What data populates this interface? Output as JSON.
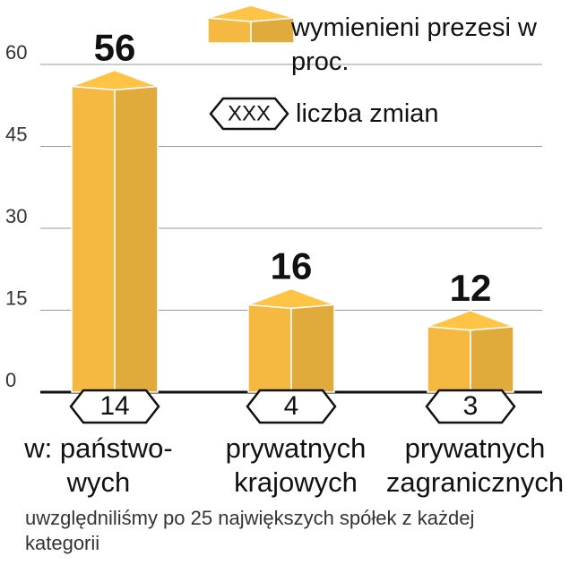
{
  "chart_data": {
    "type": "bar",
    "categories": [
      [
        "w: państwo-",
        "wych"
      ],
      [
        "prywatnych",
        "krajowych"
      ],
      [
        "prywatnych",
        "zagranicznych"
      ]
    ],
    "series": [
      {
        "name": "wymienieni prezesi w proc.",
        "color": "#f5b942",
        "values": [
          56,
          16,
          12
        ]
      }
    ],
    "value_label_colors": [
      "#c8102e",
      "#111111",
      "#111111"
    ],
    "counts": {
      "name": "liczba zmian",
      "symbol": "XXX",
      "values": [
        14,
        4,
        3
      ]
    },
    "ylim": [
      0,
      60
    ],
    "yticks": [
      0,
      15,
      30,
      45,
      60
    ],
    "grid": true,
    "note": "uwzględniliśmy po 25 największych spółek z każdej kategorii"
  }
}
